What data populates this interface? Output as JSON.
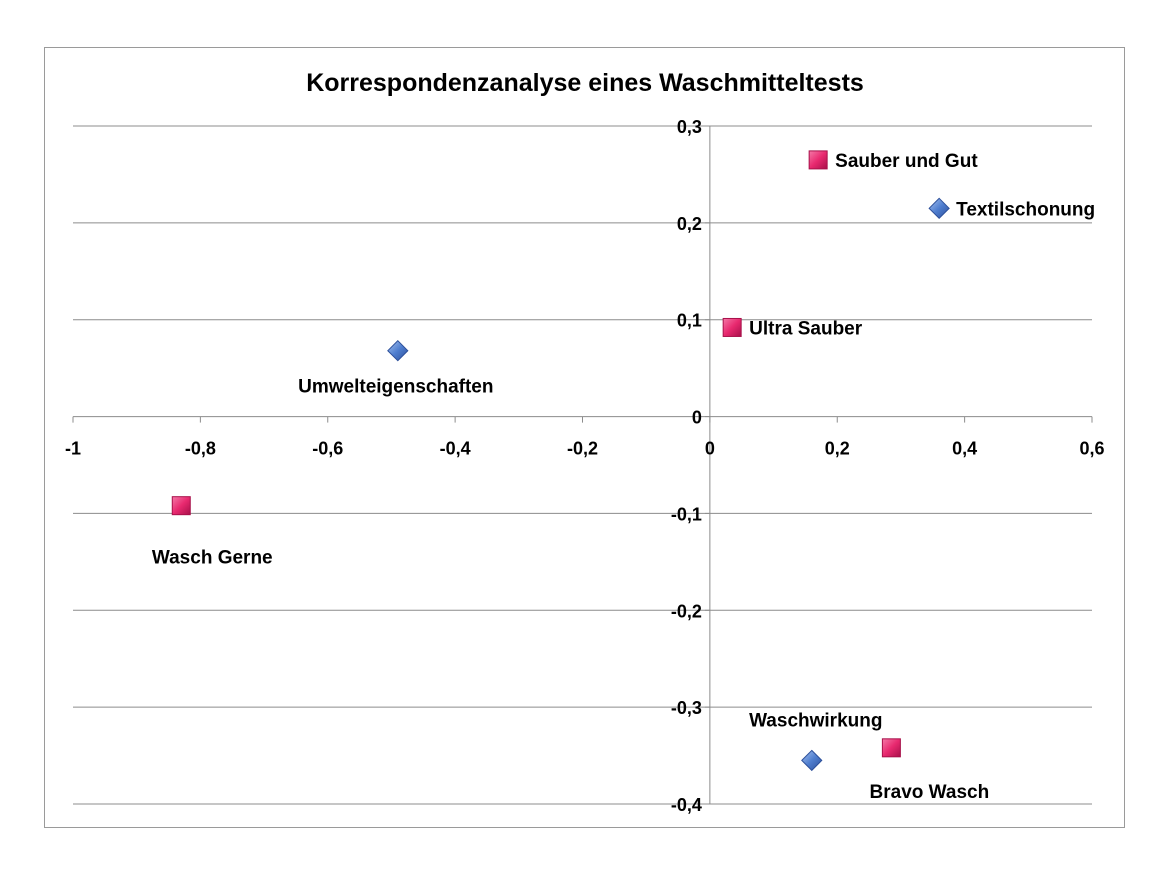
{
  "chart_data": {
    "type": "scatter",
    "title": "Korrespondenzanalyse eines Waschmitteltests",
    "xlabel": "",
    "ylabel": "",
    "xlim": [
      -1,
      0.6
    ],
    "ylim": [
      -0.4,
      0.3
    ],
    "x_ticks": [
      "-1",
      "-0,8",
      "-0,6",
      "-0,4",
      "-0,2",
      "0",
      "0,2",
      "0,4",
      "0,6"
    ],
    "x_tick_values": [
      -1,
      -0.8,
      -0.6,
      -0.4,
      -0.2,
      0,
      0.2,
      0.4,
      0.6
    ],
    "y_ticks": [
      "0,3",
      "0,2",
      "0,1",
      "0",
      "-0,1",
      "-0,2",
      "-0,3",
      "-0,4"
    ],
    "y_tick_values": [
      0.3,
      0.2,
      0.1,
      0,
      -0.1,
      -0.2,
      -0.3,
      -0.4
    ],
    "grid": "horizontal",
    "legend": "none",
    "series": [
      {
        "marker": "diamond",
        "color": "#4F7ECF",
        "points": [
          {
            "label": "Textilschonung",
            "x": 0.36,
            "y": 0.215,
            "label_pos": "right"
          },
          {
            "label": "Umwelteigenschaften",
            "x": -0.49,
            "y": 0.068,
            "label_pos": "below"
          },
          {
            "label": "Waschwirkung",
            "x": 0.16,
            "y": -0.355,
            "label_pos": "above"
          }
        ]
      },
      {
        "marker": "square",
        "color": "#E8296F",
        "points": [
          {
            "label": "Sauber und Gut",
            "x": 0.17,
            "y": 0.265,
            "label_pos": "right"
          },
          {
            "label": "Ultra Sauber",
            "x": 0.035,
            "y": 0.092,
            "label_pos": "right"
          },
          {
            "label": "Wasch Gerne",
            "x": -0.83,
            "y": -0.092,
            "label_pos": "below"
          },
          {
            "label": "Bravo Wasch",
            "x": 0.285,
            "y": -0.342,
            "label_pos": "below"
          }
        ]
      }
    ]
  }
}
